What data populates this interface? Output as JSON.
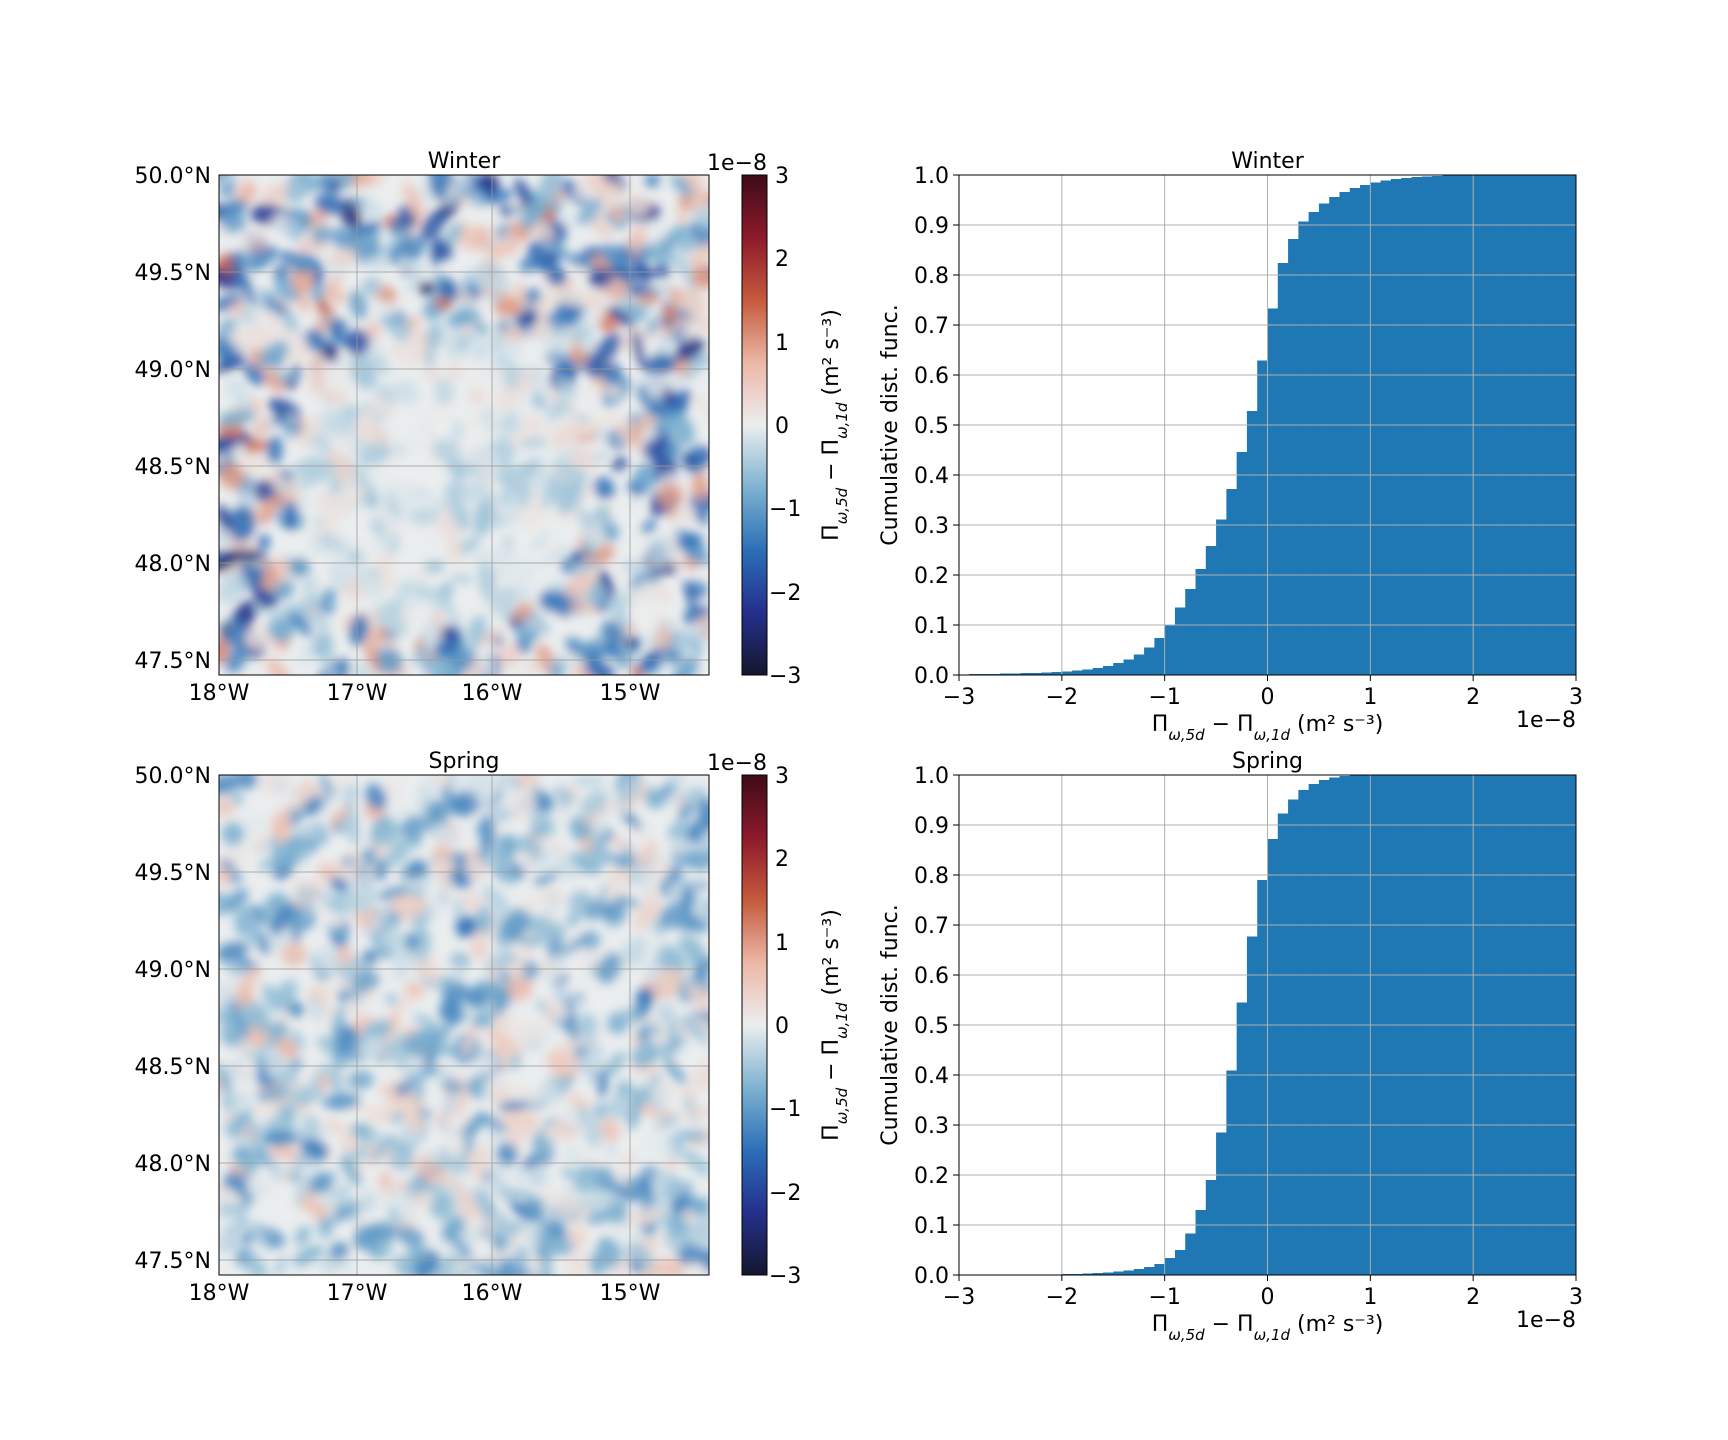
{
  "colors": {
    "bar": "#1f77b4",
    "grid": "#b0b0b0",
    "cmap_stops": [
      "#15172e",
      "#24308c",
      "#2b6fb7",
      "#7eb2d0",
      "#ebeeef",
      "#ecb7a6",
      "#c55a3c",
      "#8c1a2c",
      "#3e0b17"
    ]
  },
  "map_panels": [
    {
      "title": "Winter",
      "lat_ticks": [
        "50.0°N",
        "49.5°N",
        "49.0°N",
        "48.5°N",
        "48.0°N",
        "47.5°N"
      ],
      "lon_ticks": [
        "18°W",
        "17°W",
        "16°W",
        "15°W"
      ],
      "colorbar": {
        "exponent": "1e−8",
        "ticks": [
          "3",
          "2",
          "1",
          "0",
          "−1",
          "−2",
          "−3"
        ],
        "label": "Π_{ω,5d} − Π_{ω,1d} (m² s⁻³)"
      }
    },
    {
      "title": "Spring",
      "lat_ticks": [
        "50.0°N",
        "49.5°N",
        "49.0°N",
        "48.5°N",
        "48.0°N",
        "47.5°N"
      ],
      "lon_ticks": [
        "18°W",
        "17°W",
        "16°W",
        "15°W"
      ],
      "colorbar": {
        "exponent": "1e−8",
        "ticks": [
          "3",
          "2",
          "1",
          "0",
          "−1",
          "−2",
          "−3"
        ],
        "label": "Π_{ω,5d} − Π_{ω,1d} (m² s⁻³)"
      }
    }
  ],
  "chart_data": [
    {
      "type": "bar",
      "subtype": "cumulative histogram",
      "title": "Winter",
      "xlabel": "Π_{ω,5d} − Π_{ω,1d} (m² s⁻³)",
      "ylabel": "Cumulative dist. func.",
      "x_exponent": "1e−8",
      "xlim": [
        -3,
        3
      ],
      "ylim": [
        0,
        1
      ],
      "x_ticks": [
        "−3",
        "−2",
        "−1",
        "0",
        "1",
        "2",
        "3"
      ],
      "y_ticks": [
        "0.0",
        "0.1",
        "0.2",
        "0.3",
        "0.4",
        "0.5",
        "0.6",
        "0.7",
        "0.8",
        "0.9",
        "1.0"
      ],
      "grid": true,
      "bin_edges": [
        -3,
        -2.9,
        -2.8,
        -2.7,
        -2.6,
        -2.5,
        -2.4,
        -2.3,
        -2.2,
        -2.1,
        -2.0,
        -1.9,
        -1.8,
        -1.7,
        -1.6,
        -1.5,
        -1.4,
        -1.3,
        -1.2,
        -1.1,
        -1.0,
        -0.9,
        -0.8,
        -0.7,
        -0.6,
        -0.5,
        -0.4,
        -0.3,
        -0.2,
        -0.1,
        0.0,
        0.1,
        0.2,
        0.3,
        0.4,
        0.5,
        0.6,
        0.7,
        0.8,
        0.9,
        1.0,
        1.1,
        1.2,
        1.3,
        1.4,
        1.5,
        1.6,
        1.7,
        1.8,
        1.9,
        2.0,
        2.1,
        2.2,
        2.3,
        2.4,
        2.5,
        2.6,
        2.7,
        2.8,
        2.9,
        3.0
      ],
      "values": [
        0.001,
        0.002,
        0.002,
        0.002,
        0.003,
        0.003,
        0.004,
        0.004,
        0.005,
        0.006,
        0.007,
        0.009,
        0.011,
        0.014,
        0.018,
        0.024,
        0.031,
        0.041,
        0.055,
        0.074,
        0.101,
        0.135,
        0.172,
        0.212,
        0.258,
        0.311,
        0.372,
        0.446,
        0.528,
        0.629,
        0.733,
        0.824,
        0.872,
        0.907,
        0.926,
        0.943,
        0.956,
        0.966,
        0.974,
        0.98,
        0.985,
        0.989,
        0.992,
        0.994,
        0.996,
        0.997,
        0.998,
        0.999,
        0.999,
        1.0,
        1.0,
        1.0,
        1.0,
        1.0,
        1.0,
        1.0,
        1.0,
        1.0,
        1.0,
        1.0
      ]
    },
    {
      "type": "bar",
      "subtype": "cumulative histogram",
      "title": "Spring",
      "xlabel": "Π_{ω,5d} − Π_{ω,1d} (m² s⁻³)",
      "ylabel": "Cumulative dist. func.",
      "x_exponent": "1e−8",
      "xlim": [
        -3,
        3
      ],
      "ylim": [
        0,
        1
      ],
      "x_ticks": [
        "−3",
        "−2",
        "−1",
        "0",
        "1",
        "2",
        "3"
      ],
      "y_ticks": [
        "0.0",
        "0.1",
        "0.2",
        "0.3",
        "0.4",
        "0.5",
        "0.6",
        "0.7",
        "0.8",
        "0.9",
        "1.0"
      ],
      "grid": true,
      "bin_edges": [
        -3,
        -2.9,
        -2.8,
        -2.7,
        -2.6,
        -2.5,
        -2.4,
        -2.3,
        -2.2,
        -2.1,
        -2.0,
        -1.9,
        -1.8,
        -1.7,
        -1.6,
        -1.5,
        -1.4,
        -1.3,
        -1.2,
        -1.1,
        -1.0,
        -0.9,
        -0.8,
        -0.7,
        -0.6,
        -0.5,
        -0.4,
        -0.3,
        -0.2,
        -0.1,
        0.0,
        0.1,
        0.2,
        0.3,
        0.4,
        0.5,
        0.6,
        0.7,
        0.8,
        0.9,
        1.0,
        1.1,
        1.2,
        1.3,
        1.4,
        1.5,
        1.6,
        1.7,
        1.8,
        1.9,
        2.0,
        2.1,
        2.2,
        2.3,
        2.4,
        2.5,
        2.6,
        2.7,
        2.8,
        2.9,
        3.0
      ],
      "values": [
        0.0,
        0.0,
        0.0,
        0.0,
        0.0,
        0.0,
        0.0,
        0.0,
        0.001,
        0.001,
        0.002,
        0.002,
        0.003,
        0.004,
        0.005,
        0.007,
        0.009,
        0.012,
        0.016,
        0.022,
        0.034,
        0.05,
        0.083,
        0.13,
        0.19,
        0.285,
        0.409,
        0.545,
        0.677,
        0.79,
        0.872,
        0.923,
        0.951,
        0.97,
        0.982,
        0.99,
        0.995,
        0.998,
        0.999,
        1.0,
        1.0,
        1.0,
        1.0,
        1.0,
        1.0,
        1.0,
        1.0,
        1.0,
        1.0,
        1.0,
        1.0,
        1.0,
        1.0,
        1.0,
        1.0,
        1.0,
        1.0,
        1.0,
        1.0,
        1.0
      ]
    }
  ]
}
